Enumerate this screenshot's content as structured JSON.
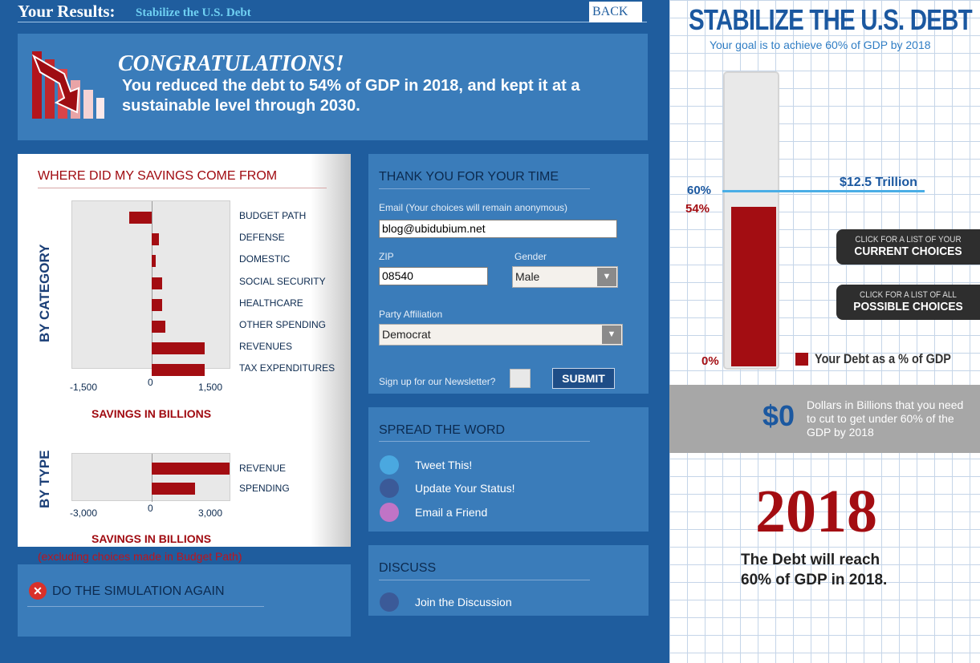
{
  "header": {
    "title": "Your Results:",
    "subtitle": "Stabilize the U.S. Debt",
    "back_label": "BACK"
  },
  "congrats": {
    "heading": "CONGRATULATIONS!",
    "text": "You reduced the debt to 54% of GDP in 2018, and kept it at a sustainable level through 2030."
  },
  "savings": {
    "heading": "WHERE DID MY SAVINGS COME FROM",
    "by_category_label": "BY CATEGORY",
    "by_type_label": "BY TYPE",
    "xlabel": "SAVINGS IN BILLIONS",
    "xlabel2": "SAVINGS IN BILLIONS",
    "note": "(excluding choices made in Budget Path)",
    "colors": {
      "bar": "#a30d12"
    }
  },
  "chart_data": [
    {
      "type": "bar",
      "orientation": "horizontal",
      "categories": [
        "BUDGET PATH",
        "DEFENSE",
        "DOMESTIC",
        "SOCIAL SECURITY",
        "HEALTHCARE",
        "OTHER SPENDING",
        "REVENUES",
        "TAX EXPENDITURES"
      ],
      "values": [
        -600,
        200,
        100,
        280,
        280,
        360,
        1400,
        1400
      ],
      "xlim": [
        -2100,
        2100
      ],
      "xticks": [
        "-1,500",
        "0",
        "1,500"
      ],
      "xlabel": "SAVINGS IN BILLIONS",
      "ylabel": "BY CATEGORY"
    },
    {
      "type": "bar",
      "orientation": "horizontal",
      "categories": [
        "REVENUE",
        "SPENDING"
      ],
      "values": [
        2950,
        1650
      ],
      "xlim": [
        -3000,
        3000
      ],
      "xticks": [
        "-3,000",
        "0",
        "3,000"
      ],
      "xlabel": "SAVINGS IN BILLIONS",
      "ylabel": "BY TYPE"
    }
  ],
  "simulation": {
    "label": "DO THE SIMULATION AGAIN"
  },
  "thanks": {
    "heading": "THANK YOU FOR YOUR TIME",
    "email_label": "Email (Your choices will remain anonymous)",
    "email_value": "blog@ubidubium.net",
    "zip_label": "ZIP",
    "zip_value": "08540",
    "gender_label": "Gender",
    "gender_value": "Male",
    "party_label": "Party Affiliation",
    "party_value": "Democrat",
    "newsletter_label": "Sign up for our Newsletter?",
    "submit_label": "SUBMIT"
  },
  "spread": {
    "heading": "SPREAD THE WORD",
    "items": [
      "Tweet This!",
      "Update Your Status!",
      "Email a Friend"
    ]
  },
  "discuss": {
    "heading": "DISCUSS",
    "item": "Join the Discussion"
  },
  "right": {
    "title": "STABILIZE THE U.S. DEBT",
    "goal": "Your goal is to achieve 60% of GDP by 2018",
    "target_label": "60%",
    "current_label": "54%",
    "zero_label": "0%",
    "debt_pct": 54,
    "amount": "$12.5 Trillion",
    "current_small": "CLICK FOR A LIST OF YOUR",
    "current_big": "CURRENT CHOICES",
    "possible_small": "CLICK FOR A LIST OF ALL",
    "possible_big": "POSSIBLE CHOICES",
    "legend": "Your Debt as a % of GDP",
    "dollars": "$0",
    "dollars_text": "Dollars in Billions that you need to cut to get under 60% of the GDP by 2018",
    "year": "2018",
    "year_text_1": "The Debt will reach",
    "year_text_2": "60% of GDP in 2018."
  }
}
